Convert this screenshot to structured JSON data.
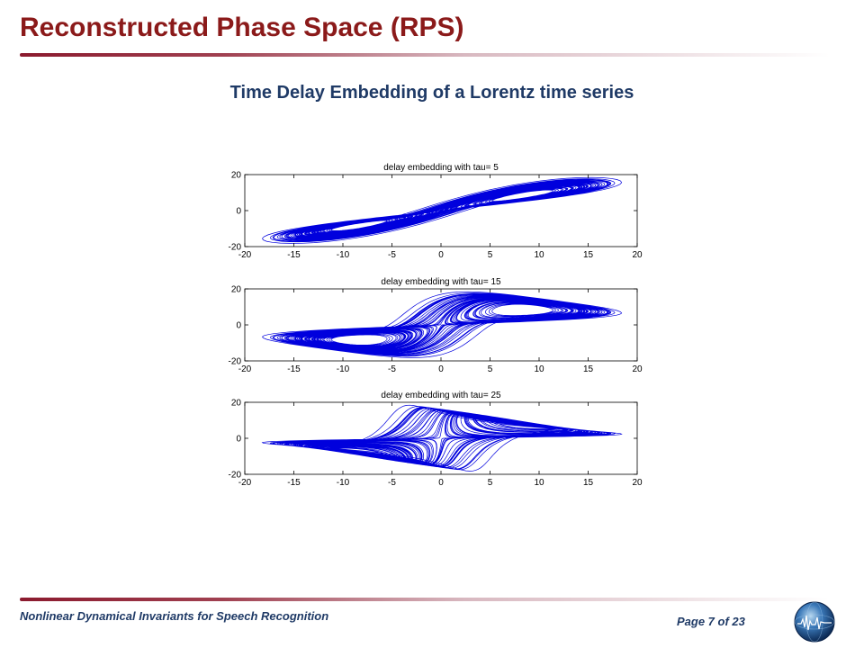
{
  "slide": {
    "title": "Reconstructed Phase Space (RPS)",
    "subtitle": "Time Delay Embedding of a Lorentz time series",
    "footer_left": "Nonlinear Dynamical Invariants for Speech Recognition",
    "page_label": "Page 7 of 23"
  },
  "colors": {
    "title": "#8b1a1a",
    "subtitle": "#1f3a66",
    "series": "#0000dd"
  },
  "icons": {
    "logo": "globe-logo-icon"
  },
  "chart_data": [
    {
      "type": "line",
      "title": "delay embedding with tau= 5",
      "tau": 5,
      "xlim": [
        -20,
        20
      ],
      "ylim": [
        -20,
        20
      ],
      "xticks": [
        -20,
        -15,
        -10,
        -5,
        0,
        5,
        10,
        15,
        20
      ],
      "yticks": [
        -20,
        0,
        20
      ],
      "series_color": "#0000dd"
    },
    {
      "type": "line",
      "title": "delay embedding with tau= 15",
      "tau": 15,
      "xlim": [
        -20,
        20
      ],
      "ylim": [
        -20,
        20
      ],
      "xticks": [
        -20,
        -15,
        -10,
        -5,
        0,
        5,
        10,
        15,
        20
      ],
      "yticks": [
        -20,
        0,
        20
      ],
      "series_color": "#0000dd"
    },
    {
      "type": "line",
      "title": "delay embedding with tau= 25",
      "tau": 25,
      "xlim": [
        -20,
        20
      ],
      "ylim": [
        -20,
        20
      ],
      "xticks": [
        -20,
        -15,
        -10,
        -5,
        0,
        5,
        10,
        15,
        20
      ],
      "yticks": [
        -20,
        0,
        20
      ],
      "series_color": "#0000dd"
    }
  ]
}
